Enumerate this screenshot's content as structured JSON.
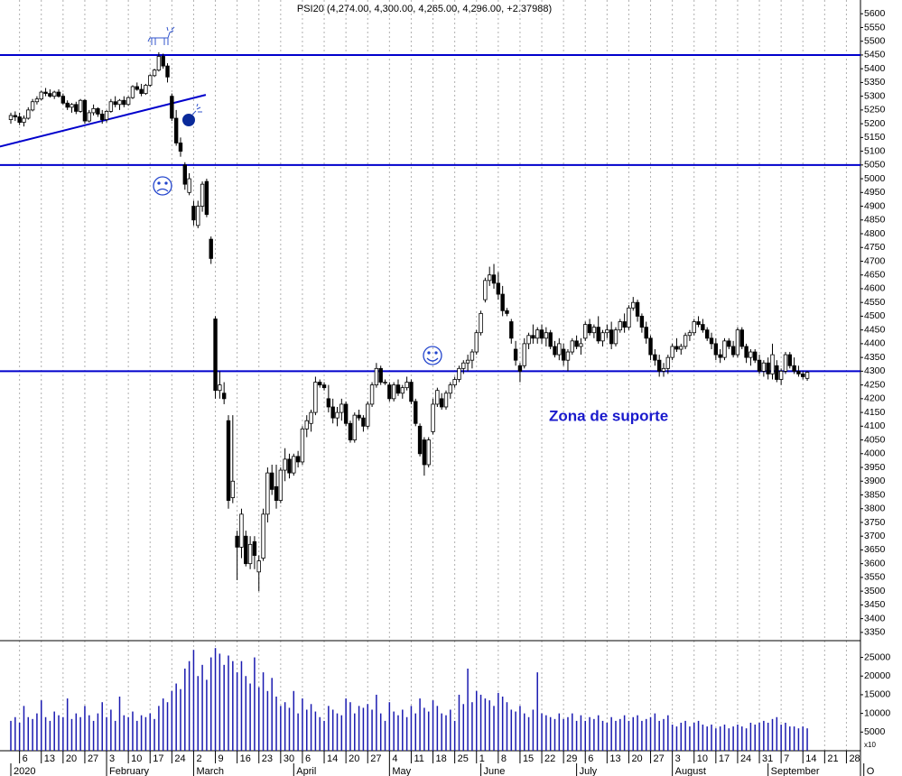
{
  "chart_data": {
    "type": "candlestick",
    "title": "PSI20 (4,274.00, 4,300.00, 4,265.00, 4,296.00, +2.37988)",
    "annotation": "Zona de suporte",
    "volume_unit_label": "x10",
    "up_color": "#ffffff",
    "down_color": "#000000",
    "line_color": "#0000cc",
    "volume_color": "#1a1ab0",
    "grid": true,
    "ylim": [
      3320,
      5650
    ],
    "yticks": [
      3350,
      3400,
      3450,
      3500,
      3550,
      3600,
      3650,
      3700,
      3750,
      3800,
      3850,
      3900,
      3950,
      4000,
      4050,
      4100,
      4150,
      4200,
      4250,
      4300,
      4350,
      4400,
      4450,
      4500,
      4550,
      4600,
      4650,
      4700,
      4750,
      4800,
      4850,
      4900,
      4950,
      5000,
      5050,
      5100,
      5150,
      5200,
      5250,
      5300,
      5350,
      5400,
      5450,
      5500,
      5550,
      5600
    ],
    "y2lim": [
      0,
      29000
    ],
    "y2ticks": [
      5000,
      10000,
      15000,
      20000,
      25000
    ],
    "xticks": [
      {
        "value": 2,
        "label": "6"
      },
      {
        "value": 7,
        "label": "13"
      },
      {
        "value": 12,
        "label": "20"
      },
      {
        "value": 17,
        "label": "27"
      },
      {
        "value": 22,
        "label": "3"
      },
      {
        "value": 27,
        "label": "10"
      },
      {
        "value": 32,
        "label": "17"
      },
      {
        "value": 37,
        "label": "24"
      },
      {
        "value": 42,
        "label": "2"
      },
      {
        "value": 47,
        "label": "9"
      },
      {
        "value": 52,
        "label": "16"
      },
      {
        "value": 57,
        "label": "23"
      },
      {
        "value": 62,
        "label": "30"
      },
      {
        "value": 67,
        "label": "6"
      },
      {
        "value": 72,
        "label": "14"
      },
      {
        "value": 77,
        "label": "20"
      },
      {
        "value": 82,
        "label": "27"
      },
      {
        "value": 87,
        "label": "4"
      },
      {
        "value": 92,
        "label": "11"
      },
      {
        "value": 97,
        "label": "18"
      },
      {
        "value": 102,
        "label": "25"
      },
      {
        "value": 107,
        "label": "1"
      },
      {
        "value": 112,
        "label": "8"
      },
      {
        "value": 117,
        "label": "15"
      },
      {
        "value": 122,
        "label": "22"
      },
      {
        "value": 127,
        "label": "29"
      },
      {
        "value": 132,
        "label": "6"
      },
      {
        "value": 137,
        "label": "13"
      },
      {
        "value": 142,
        "label": "20"
      },
      {
        "value": 147,
        "label": "27"
      },
      {
        "value": 152,
        "label": "3"
      },
      {
        "value": 157,
        "label": "10"
      },
      {
        "value": 162,
        "label": "17"
      },
      {
        "value": 167,
        "label": "24"
      },
      {
        "value": 172,
        "label": "31"
      },
      {
        "value": 177,
        "label": "7"
      },
      {
        "value": 182,
        "label": "14"
      },
      {
        "value": 187,
        "label": "21"
      },
      {
        "value": 192,
        "label": "28"
      }
    ],
    "month_ticks": [
      {
        "value": 0,
        "label": "2020"
      },
      {
        "value": 22,
        "label": "February"
      },
      {
        "value": 42,
        "label": "March"
      },
      {
        "value": 65,
        "label": "April"
      },
      {
        "value": 87,
        "label": "May"
      },
      {
        "value": 108,
        "label": "June"
      },
      {
        "value": 130,
        "label": "July"
      },
      {
        "value": 152,
        "label": "August"
      },
      {
        "value": 174,
        "label": "September"
      },
      {
        "value": 196,
        "label": "O"
      }
    ],
    "hlines": [
      5450,
      5050,
      4300
    ],
    "trendline": {
      "x": [
        -2.5,
        44.8
      ],
      "y": [
        5117,
        5305
      ]
    },
    "ohlc": [
      [
        5215,
        5240,
        5200,
        5230
      ],
      [
        5230,
        5245,
        5210,
        5225
      ],
      [
        5225,
        5240,
        5195,
        5205
      ],
      [
        5205,
        5230,
        5190,
        5220
      ],
      [
        5220,
        5260,
        5215,
        5250
      ],
      [
        5250,
        5290,
        5245,
        5280
      ],
      [
        5280,
        5300,
        5270,
        5290
      ],
      [
        5290,
        5320,
        5285,
        5315
      ],
      [
        5315,
        5330,
        5300,
        5310
      ],
      [
        5310,
        5325,
        5295,
        5300
      ],
      [
        5300,
        5320,
        5290,
        5315
      ],
      [
        5315,
        5325,
        5295,
        5300
      ],
      [
        5300,
        5310,
        5270,
        5275
      ],
      [
        5275,
        5285,
        5250,
        5260
      ],
      [
        5260,
        5275,
        5240,
        5270
      ],
      [
        5270,
        5280,
        5235,
        5245
      ],
      [
        5245,
        5290,
        5240,
        5285
      ],
      [
        5285,
        5290,
        5200,
        5210
      ],
      [
        5210,
        5250,
        5205,
        5240
      ],
      [
        5240,
        5270,
        5230,
        5255
      ],
      [
        5255,
        5260,
        5225,
        5235
      ],
      [
        5235,
        5250,
        5200,
        5215
      ],
      [
        5215,
        5250,
        5205,
        5245
      ],
      [
        5245,
        5290,
        5240,
        5280
      ],
      [
        5280,
        5300,
        5260,
        5270
      ],
      [
        5270,
        5290,
        5250,
        5285
      ],
      [
        5285,
        5300,
        5260,
        5270
      ],
      [
        5270,
        5300,
        5265,
        5295
      ],
      [
        5295,
        5340,
        5290,
        5335
      ],
      [
        5335,
        5350,
        5320,
        5325
      ],
      [
        5325,
        5345,
        5300,
        5310
      ],
      [
        5310,
        5345,
        5305,
        5340
      ],
      [
        5340,
        5380,
        5335,
        5375
      ],
      [
        5375,
        5400,
        5370,
        5395
      ],
      [
        5395,
        5460,
        5390,
        5445
      ],
      [
        5445,
        5455,
        5400,
        5410
      ],
      [
        5410,
        5420,
        5350,
        5370
      ],
      [
        5300,
        5310,
        5210,
        5220
      ],
      [
        5220,
        5250,
        5120,
        5130
      ],
      [
        5130,
        5150,
        5080,
        5100
      ],
      [
        5050,
        5060,
        4960,
        4980
      ],
      [
        4950,
        5020,
        4940,
        5000
      ],
      [
        4900,
        4920,
        4830,
        4850
      ],
      [
        4830,
        4920,
        4820,
        4900
      ],
      [
        4900,
        4990,
        4880,
        4980
      ],
      [
        4990,
        5000,
        4860,
        4870
      ],
      [
        4780,
        4790,
        4690,
        4710
      ],
      [
        4490,
        4500,
        4200,
        4230
      ],
      [
        4230,
        4300,
        4200,
        4250
      ],
      [
        4220,
        4260,
        4180,
        4200
      ],
      [
        4120,
        4140,
        3800,
        3830
      ],
      [
        3840,
        4140,
        3820,
        3900
      ],
      [
        3700,
        3720,
        3540,
        3660
      ],
      [
        3660,
        3800,
        3620,
        3780
      ],
      [
        3700,
        3720,
        3590,
        3600
      ],
      [
        3600,
        3700,
        3580,
        3670
      ],
      [
        3680,
        3700,
        3580,
        3630
      ],
      [
        3570,
        3630,
        3500,
        3610
      ],
      [
        3620,
        3800,
        3610,
        3780
      ],
      [
        3780,
        3950,
        3750,
        3930
      ],
      [
        3930,
        3960,
        3850,
        3870
      ],
      [
        3880,
        3960,
        3800,
        3830
      ],
      [
        3830,
        3950,
        3820,
        3940
      ],
      [
        3940,
        4020,
        3900,
        3980
      ],
      [
        3980,
        4000,
        3910,
        3930
      ],
      [
        3930,
        4000,
        3920,
        3990
      ],
      [
        3990,
        4010,
        3950,
        3970
      ],
      [
        3970,
        4100,
        3960,
        4090
      ],
      [
        4090,
        4140,
        4060,
        4120
      ],
      [
        4110,
        4160,
        4080,
        4150
      ],
      [
        4150,
        4280,
        4140,
        4260
      ],
      [
        4260,
        4270,
        4240,
        4250
      ],
      [
        4250,
        4260,
        4230,
        4240
      ],
      [
        4200,
        4250,
        4150,
        4170
      ],
      [
        4170,
        4200,
        4110,
        4130
      ],
      [
        4130,
        4170,
        4100,
        4150
      ],
      [
        4150,
        4200,
        4120,
        4180
      ],
      [
        4180,
        4190,
        4100,
        4110
      ],
      [
        4110,
        4120,
        4040,
        4050
      ],
      [
        4050,
        4150,
        4040,
        4140
      ],
      [
        4140,
        4160,
        4120,
        4130
      ],
      [
        4130,
        4140,
        4080,
        4100
      ],
      [
        4100,
        4190,
        4090,
        4180
      ],
      [
        4180,
        4260,
        4170,
        4250
      ],
      [
        4250,
        4330,
        4240,
        4310
      ],
      [
        4310,
        4320,
        4250,
        4260
      ],
      [
        4260,
        4270,
        4250,
        4260
      ],
      [
        4250,
        4260,
        4190,
        4200
      ],
      [
        4200,
        4260,
        4190,
        4250
      ],
      [
        4250,
        4270,
        4210,
        4220
      ],
      [
        4220,
        4250,
        4200,
        4240
      ],
      [
        4240,
        4280,
        4230,
        4260
      ],
      [
        4260,
        4270,
        4180,
        4190
      ],
      [
        4190,
        4200,
        4100,
        4110
      ],
      [
        4100,
        4110,
        3990,
        4000
      ],
      [
        4050,
        4060,
        3920,
        3960
      ],
      [
        3960,
        4060,
        3950,
        4050
      ],
      [
        4080,
        4200,
        4070,
        4180
      ],
      [
        4180,
        4240,
        4170,
        4230
      ],
      [
        4200,
        4220,
        4160,
        4170
      ],
      [
        4170,
        4230,
        4160,
        4220
      ],
      [
        4220,
        4260,
        4200,
        4250
      ],
      [
        4250,
        4280,
        4240,
        4270
      ],
      [
        4270,
        4320,
        4260,
        4310
      ],
      [
        4310,
        4340,
        4290,
        4330
      ],
      [
        4330,
        4360,
        4300,
        4340
      ],
      [
        4340,
        4380,
        4310,
        4370
      ],
      [
        4370,
        4450,
        4360,
        4440
      ],
      [
        4440,
        4520,
        4430,
        4510
      ],
      [
        4560,
        4640,
        4550,
        4630
      ],
      [
        4630,
        4680,
        4610,
        4650
      ],
      [
        4650,
        4690,
        4600,
        4620
      ],
      [
        4620,
        4660,
        4560,
        4580
      ],
      [
        4580,
        4610,
        4500,
        4520
      ],
      [
        4520,
        4530,
        4500,
        4510
      ],
      [
        4480,
        4490,
        4400,
        4420
      ],
      [
        4380,
        4410,
        4320,
        4340
      ],
      [
        4320,
        4330,
        4260,
        4300
      ],
      [
        4320,
        4420,
        4310,
        4400
      ],
      [
        4400,
        4440,
        4380,
        4430
      ],
      [
        4430,
        4470,
        4400,
        4420
      ],
      [
        4420,
        4460,
        4400,
        4450
      ],
      [
        4450,
        4470,
        4400,
        4420
      ],
      [
        4420,
        4460,
        4390,
        4440
      ],
      [
        4440,
        4450,
        4380,
        4390
      ],
      [
        4390,
        4410,
        4350,
        4360
      ],
      [
        4360,
        4420,
        4340,
        4400
      ],
      [
        4380,
        4400,
        4320,
        4340
      ],
      [
        4340,
        4380,
        4300,
        4370
      ],
      [
        4370,
        4420,
        4360,
        4410
      ],
      [
        4410,
        4430,
        4380,
        4390
      ],
      [
        4390,
        4420,
        4360,
        4400
      ],
      [
        4420,
        4480,
        4410,
        4470
      ],
      [
        4470,
        4490,
        4430,
        4440
      ],
      [
        4440,
        4470,
        4420,
        4460
      ],
      [
        4460,
        4500,
        4400,
        4410
      ],
      [
        4410,
        4450,
        4390,
        4440
      ],
      [
        4440,
        4470,
        4420,
        4450
      ],
      [
        4450,
        4480,
        4380,
        4400
      ],
      [
        4400,
        4460,
        4390,
        4450
      ],
      [
        4450,
        4490,
        4440,
        4480
      ],
      [
        4480,
        4510,
        4440,
        4460
      ],
      [
        4460,
        4540,
        4450,
        4530
      ],
      [
        4530,
        4570,
        4520,
        4550
      ],
      [
        4550,
        4560,
        4480,
        4500
      ],
      [
        4500,
        4510,
        4440,
        4460
      ],
      [
        4460,
        4480,
        4400,
        4420
      ],
      [
        4420,
        4430,
        4340,
        4360
      ],
      [
        4360,
        4380,
        4320,
        4340
      ],
      [
        4340,
        4360,
        4280,
        4300
      ],
      [
        4300,
        4330,
        4280,
        4310
      ],
      [
        4310,
        4360,
        4290,
        4350
      ],
      [
        4350,
        4400,
        4340,
        4390
      ],
      [
        4390,
        4420,
        4370,
        4380
      ],
      [
        4380,
        4400,
        4360,
        4390
      ],
      [
        4390,
        4440,
        4380,
        4430
      ],
      [
        4430,
        4450,
        4410,
        4440
      ],
      [
        4440,
        4490,
        4430,
        4480
      ],
      [
        4480,
        4500,
        4460,
        4470
      ],
      [
        4470,
        4490,
        4440,
        4450
      ],
      [
        4450,
        4460,
        4410,
        4420
      ],
      [
        4420,
        4440,
        4380,
        4400
      ],
      [
        4400,
        4420,
        4340,
        4360
      ],
      [
        4360,
        4380,
        4330,
        4350
      ],
      [
        4350,
        4420,
        4340,
        4410
      ],
      [
        4410,
        4420,
        4380,
        4390
      ],
      [
        4390,
        4410,
        4350,
        4360
      ],
      [
        4360,
        4460,
        4350,
        4450
      ],
      [
        4450,
        4460,
        4380,
        4390
      ],
      [
        4390,
        4400,
        4330,
        4350
      ],
      [
        4350,
        4380,
        4320,
        4370
      ],
      [
        4370,
        4380,
        4330,
        4340
      ],
      [
        4340,
        4360,
        4290,
        4300
      ],
      [
        4300,
        4340,
        4280,
        4330
      ],
      [
        4330,
        4350,
        4270,
        4290
      ],
      [
        4290,
        4400,
        4270,
        4360
      ],
      [
        4320,
        4340,
        4260,
        4270
      ],
      [
        4270,
        4310,
        4250,
        4300
      ],
      [
        4300,
        4370,
        4290,
        4360
      ],
      [
        4360,
        4370,
        4310,
        4320
      ],
      [
        4320,
        4350,
        4290,
        4300
      ],
      [
        4300,
        4320,
        4280,
        4290
      ],
      [
        4290,
        4300,
        4270,
        4280
      ],
      [
        4274,
        4300,
        4265,
        4296
      ]
    ],
    "volume": [
      8000,
      9000,
      7500,
      12000,
      9000,
      8500,
      10000,
      13500,
      9000,
      8000,
      10500,
      9500,
      9000,
      14000,
      8500,
      10000,
      9000,
      12000,
      9500,
      8000,
      10000,
      13000,
      9000,
      11000,
      8000,
      14500,
      9500,
      9000,
      10500,
      8000,
      9500,
      9000,
      10000,
      8500,
      12000,
      14000,
      13000,
      16000,
      18000,
      16500,
      22000,
      24000,
      27000,
      20000,
      23000,
      19000,
      25000,
      27500,
      26000,
      23000,
      25500,
      24000,
      21000,
      24000,
      20000,
      18000,
      25000,
      17000,
      21000,
      16000,
      19500,
      14500,
      12000,
      13000,
      11500,
      16000,
      10000,
      14000,
      11000,
      12500,
      10500,
      9000,
      8000,
      12000,
      11000,
      10000,
      9500,
      14000,
      13000,
      10000,
      12000,
      11500,
      12500,
      11000,
      15000,
      10000,
      8000,
      13000,
      10500,
      9500,
      11000,
      9000,
      12000,
      10000,
      14000,
      11500,
      10500,
      13500,
      12000,
      10000,
      9500,
      11000,
      8000,
      15000,
      12500,
      22000,
      13000,
      16000,
      15000,
      14000,
      13500,
      12000,
      15500,
      14500,
      13000,
      11000,
      10500,
      12000,
      10000,
      9000,
      11000,
      21000,
      10000,
      9500,
      9000,
      8500,
      10000,
      8500,
      9000,
      10000,
      8000,
      9500,
      8000,
      9000,
      8500,
      9500,
      8000,
      7500,
      9000,
      8000,
      8500,
      9500,
      8000,
      9000,
      9500,
      8000,
      8500,
      9000,
      10000,
      8000,
      8500,
      9500,
      7000,
      6500,
      7500,
      8000,
      6500,
      7500,
      8000,
      7000,
      6500,
      7000,
      6000,
      6500,
      7000,
      6000,
      6500,
      7000,
      6500,
      6000,
      7500,
      7000,
      7500,
      8000,
      7500,
      8500,
      9000,
      7000,
      7500,
      6500,
      6500,
      6000,
      6500,
      6000
    ]
  }
}
